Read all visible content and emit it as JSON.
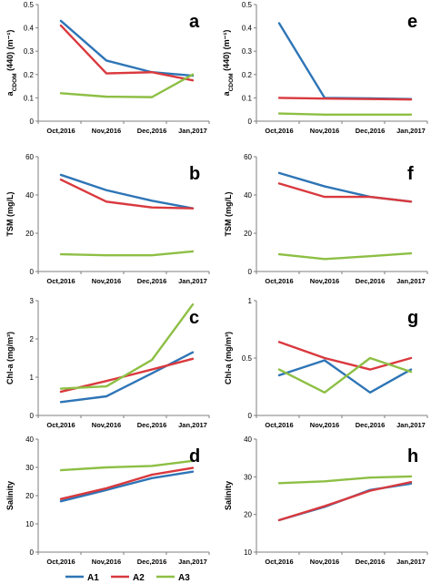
{
  "figure": {
    "categories": [
      "Oct,2016",
      "Nov,2016",
      "Dec,2016",
      "Jan,2017"
    ],
    "series_colors": {
      "A1": "#2e75b6",
      "A2": "#d9393e",
      "A3": "#8dbf44"
    },
    "legend": [
      {
        "name": "A1",
        "color": "#2e75b6"
      },
      {
        "name": "A2",
        "color": "#d9393e"
      },
      {
        "name": "A3",
        "color": "#8dbf44"
      }
    ]
  },
  "chart_data": [
    {
      "type": "line",
      "panel_label": "a",
      "ylabel": "a_CDOM (440) (m⁻¹)",
      "ylim": [
        0,
        0.5
      ],
      "yticks": [
        "0",
        "0.1",
        "0.2",
        "0.3",
        "0.4",
        "0.5"
      ],
      "categories": [
        "Oct,2016",
        "Nov,2016",
        "Dec,2016",
        "Jan,2017"
      ],
      "series": [
        {
          "name": "A1",
          "values": [
            0.43,
            0.26,
            0.21,
            0.195
          ]
        },
        {
          "name": "A2",
          "values": [
            0.41,
            0.205,
            0.21,
            0.175
          ]
        },
        {
          "name": "A3",
          "values": [
            0.12,
            0.105,
            0.103,
            0.2
          ]
        }
      ]
    },
    {
      "type": "line",
      "panel_label": "e",
      "ylabel": "a_CDOM (440) (m⁻¹)",
      "ylim": [
        0,
        0.5
      ],
      "yticks": [
        "0",
        "0.1",
        "0.2",
        "0.3",
        "0.4",
        "0.5"
      ],
      "categories": [
        "Oct,2016",
        "Nov,2016",
        "Dec,2016",
        "Jan,2017"
      ],
      "series": [
        {
          "name": "A1",
          "values": [
            0.42,
            0.1,
            0.098,
            0.095
          ]
        },
        {
          "name": "A2",
          "values": [
            0.1,
            0.097,
            0.095,
            0.093
          ]
        },
        {
          "name": "A3",
          "values": [
            0.033,
            0.028,
            0.028,
            0.028
          ]
        }
      ]
    },
    {
      "type": "line",
      "panel_label": "b",
      "ylabel": "TSM (mg/L)",
      "ylim": [
        0,
        60
      ],
      "yticks": [
        "0",
        "20",
        "40",
        "60"
      ],
      "categories": [
        "Oct,2016",
        "Nov,2016",
        "Dec,2016",
        "Jan,2017"
      ],
      "series": [
        {
          "name": "A1",
          "values": [
            50.5,
            42.5,
            37,
            33
          ]
        },
        {
          "name": "A2",
          "values": [
            48,
            36.5,
            33.5,
            33
          ]
        },
        {
          "name": "A3",
          "values": [
            9,
            8.5,
            8.5,
            10.5
          ]
        }
      ]
    },
    {
      "type": "line",
      "panel_label": "f",
      "ylabel": "TSM (mg/L)",
      "ylim": [
        0,
        60
      ],
      "yticks": [
        "0",
        "20",
        "40",
        "60"
      ],
      "categories": [
        "Oct,2016",
        "Nov,2016",
        "Dec,2016",
        "Jan,2017"
      ],
      "series": [
        {
          "name": "A1",
          "values": [
            51.5,
            44.5,
            39,
            36.5
          ]
        },
        {
          "name": "A2",
          "values": [
            46,
            39,
            39,
            36.5
          ]
        },
        {
          "name": "A3",
          "values": [
            9,
            6.5,
            8,
            9.5
          ]
        }
      ]
    },
    {
      "type": "line",
      "panel_label": "c",
      "ylabel": "Chl-a (mg/m³)",
      "ylim": [
        0,
        3
      ],
      "yticks": [
        "0",
        "1",
        "2",
        "3"
      ],
      "categories": [
        "Oct,2016",
        "Nov,2016",
        "Dec,2016",
        "Jan,2017"
      ],
      "series": [
        {
          "name": "A1",
          "values": [
            0.35,
            0.5,
            1.1,
            1.65
          ]
        },
        {
          "name": "A2",
          "values": [
            0.62,
            0.9,
            1.2,
            1.48
          ]
        },
        {
          "name": "A3",
          "values": [
            0.7,
            0.76,
            1.45,
            2.9
          ]
        }
      ]
    },
    {
      "type": "line",
      "panel_label": "g",
      "ylabel": "Chl-a (mg/m³)",
      "ylim": [
        0,
        1
      ],
      "yticks": [
        "0",
        "0.5",
        "1"
      ],
      "categories": [
        "Oct,2016",
        "Nov,2016",
        "Dec,2016",
        "Jan,2017"
      ],
      "series": [
        {
          "name": "A1",
          "values": [
            0.35,
            0.48,
            0.2,
            0.4
          ]
        },
        {
          "name": "A2",
          "values": [
            0.64,
            0.5,
            0.4,
            0.5
          ]
        },
        {
          "name": "A3",
          "values": [
            0.4,
            0.2,
            0.5,
            0.38
          ]
        }
      ]
    },
    {
      "type": "line",
      "panel_label": "d",
      "ylabel": "Salinity",
      "ylim": [
        0,
        40
      ],
      "yticks": [
        "0",
        "10",
        "20",
        "30",
        "40"
      ],
      "categories": [
        "Oct,2016",
        "Nov,2016",
        "Dec,2016",
        "Jan,2017"
      ],
      "series": [
        {
          "name": "A1",
          "values": [
            18,
            22,
            26.2,
            28.5
          ]
        },
        {
          "name": "A2",
          "values": [
            18.8,
            22.6,
            27.4,
            29.8
          ]
        },
        {
          "name": "A3",
          "values": [
            29,
            30,
            30.5,
            32.3
          ]
        }
      ]
    },
    {
      "type": "line",
      "panel_label": "h",
      "ylabel": "Salinity",
      "ylim": [
        10,
        40
      ],
      "yticks": [
        "10",
        "20",
        "30",
        "40"
      ],
      "categories": [
        "Oct,2016",
        "Nov,2016",
        "Dec,2016",
        "Jan,2017"
      ],
      "series": [
        {
          "name": "A1",
          "values": [
            18.5,
            22,
            26.5,
            28.2
          ]
        },
        {
          "name": "A2",
          "values": [
            18.5,
            22.2,
            26.3,
            28.6
          ]
        },
        {
          "name": "A3",
          "values": [
            28.3,
            28.8,
            29.8,
            30.1
          ]
        }
      ]
    }
  ]
}
